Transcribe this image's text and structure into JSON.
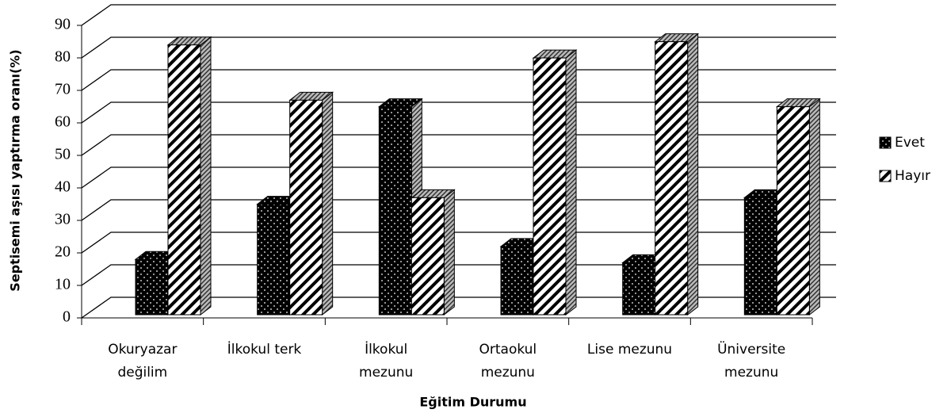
{
  "chart_data": {
    "type": "bar3d",
    "categories": [
      "Okuryazar\ndeğilim",
      "İlkokul terk",
      "İlkokul\nmezunu",
      "Ortaokul\nmezunu",
      "Lise mezunu",
      "Üniversite\nmezunu"
    ],
    "series": [
      {
        "name": "Evet",
        "color": "#000000",
        "values": [
          17,
          34,
          64,
          21,
          16,
          36
        ]
      },
      {
        "name": "Hayır",
        "color": "#ffffff",
        "values": [
          83,
          66,
          36,
          79,
          84,
          64
        ]
      }
    ],
    "ylim": [
      0,
      90
    ],
    "yticks": [
      0,
      10,
      20,
      30,
      40,
      50,
      60,
      70,
      80,
      90
    ],
    "ylabel": "Septisemi aşısı yaptırma oranı(%)",
    "xlabel": "Eğitim Durumu",
    "grid": true,
    "legend": "right"
  }
}
